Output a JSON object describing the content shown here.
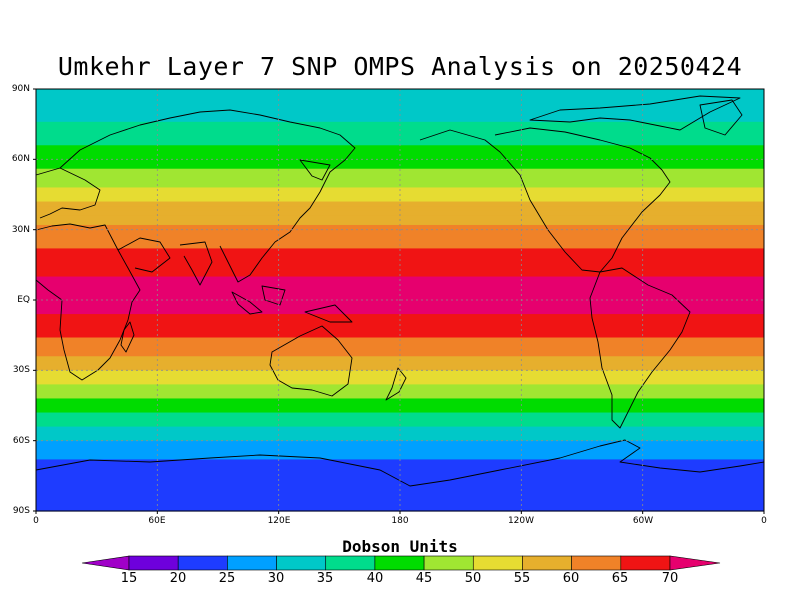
{
  "title": "Umkehr Layer 7 SNP OMPS Analysis on 20250424",
  "chart_data": {
    "type": "heatmap",
    "title": "Umkehr Layer 7 SNP OMPS Analysis on 20250424",
    "colorbar_label": "Dobson Units",
    "y_ticks": [
      "90N",
      "60N",
      "30N",
      "EQ",
      "30S",
      "60S",
      "90S"
    ],
    "x_ticks": [
      "0",
      "60E",
      "120E",
      "180",
      "120W",
      "60W",
      "0"
    ],
    "levels": [
      15,
      20,
      25,
      30,
      35,
      40,
      45,
      50,
      55,
      60,
      65,
      70
    ],
    "colors": [
      "#a000c8",
      "#6e00dc",
      "#1e3cff",
      "#00a0ff",
      "#00c8c8",
      "#00dc8c",
      "#00dc00",
      "#a0e632",
      "#e6dc32",
      "#e6af2d",
      "#f08228",
      "#f01414",
      "#e6006e"
    ],
    "zonal_profile": [
      {
        "lat": 90,
        "du": 30
      },
      {
        "lat": 80,
        "du": 33
      },
      {
        "lat": 70,
        "du": 38
      },
      {
        "lat": 60,
        "du": 43
      },
      {
        "lat": 50,
        "du": 49
      },
      {
        "lat": 40,
        "du": 56
      },
      {
        "lat": 30,
        "du": 61
      },
      {
        "lat": 20,
        "du": 66
      },
      {
        "lat": 10,
        "du": 70
      },
      {
        "lat": 0,
        "du": 71
      },
      {
        "lat": -10,
        "du": 69
      },
      {
        "lat": -20,
        "du": 63
      },
      {
        "lat": -30,
        "du": 55
      },
      {
        "lat": -40,
        "du": 46
      },
      {
        "lat": -50,
        "du": 38
      },
      {
        "lat": -60,
        "du": 30
      },
      {
        "lat": -70,
        "du": 23
      },
      {
        "lat": -90,
        "du": 21
      }
    ]
  }
}
